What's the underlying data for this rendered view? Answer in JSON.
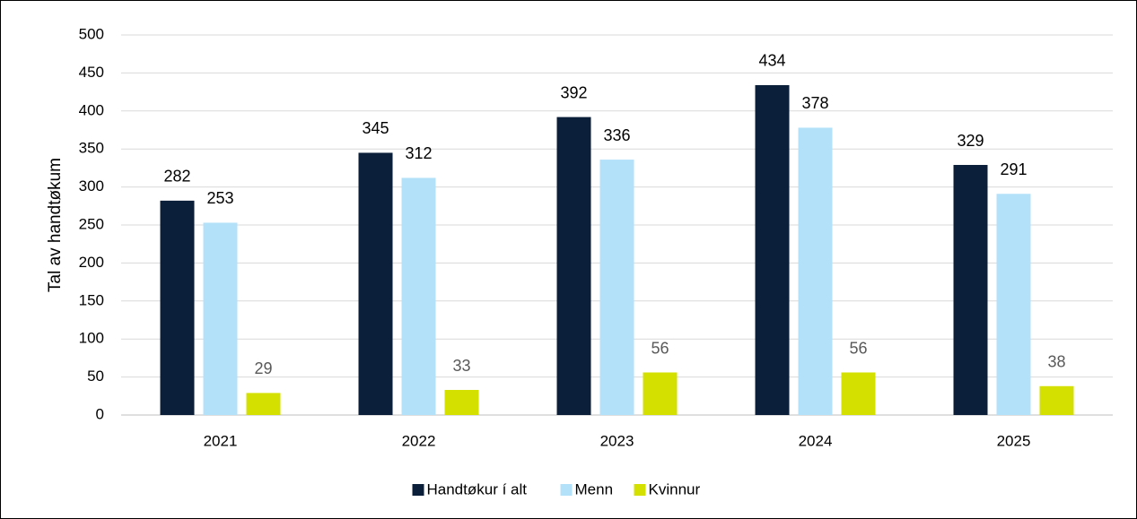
{
  "chart_data": {
    "type": "bar",
    "y_label": "Tal av handtøkum",
    "categories": [
      "2021",
      "2022",
      "2023",
      "2024",
      "2025"
    ],
    "series": [
      {
        "name": "Handtøkur í alt",
        "color": "#0b1f3a",
        "values": [
          282,
          345,
          392,
          434,
          329
        ]
      },
      {
        "name": "Menn",
        "color": "#b4e1fa",
        "values": [
          253,
          312,
          336,
          378,
          291
        ]
      },
      {
        "name": "Kvinnur",
        "color": "#d4e100",
        "values": [
          29,
          33,
          56,
          56,
          38
        ]
      }
    ],
    "ylim": [
      0,
      500
    ],
    "yticks": [
      0,
      50,
      100,
      150,
      200,
      250,
      300,
      350,
      400,
      450,
      500
    ],
    "grid": true,
    "legend": "bottom"
  }
}
